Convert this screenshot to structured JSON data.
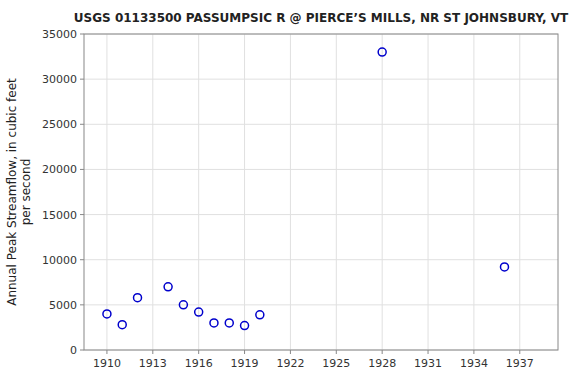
{
  "chart_data": {
    "type": "scatter",
    "title": "USGS 01133500 PASSUMPSIC R @ PIERCE’S MILLS, NR ST JOHNSBURY, VT",
    "ylabel": "Annual Peak Streamflow, in cubic feet\nper second",
    "x": [
      1910,
      1911,
      1912,
      1914,
      1915,
      1916,
      1917,
      1918,
      1919,
      1920,
      1928,
      1936
    ],
    "values": [
      4000,
      2800,
      5800,
      7000,
      5000,
      4200,
      3000,
      3000,
      2700,
      3900,
      33000,
      9200
    ],
    "color": "#0000cc",
    "marker": "circle",
    "xlim": [
      1908.5,
      1939.5
    ],
    "ylim": [
      0,
      35000
    ],
    "xticks": [
      1910,
      1913,
      1916,
      1919,
      1922,
      1925,
      1928,
      1931,
      1934,
      1937
    ],
    "yticks": [
      0,
      5000,
      10000,
      15000,
      20000,
      25000,
      30000,
      35000
    ],
    "grid": true
  }
}
